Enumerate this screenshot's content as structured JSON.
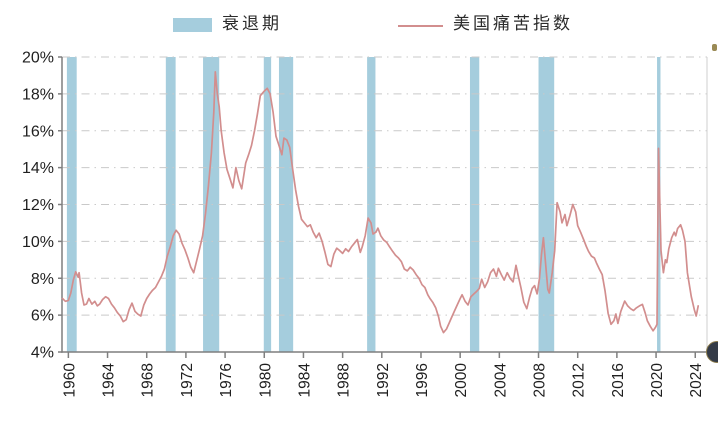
{
  "legend": {
    "recession_label": "衰退期",
    "misery_label": "美国痛苦指数"
  },
  "colors": {
    "recession_band": "#a5cddd",
    "misery_line": "#d28e8e",
    "gridline": "#c9c9c9",
    "axis": "#7f7f7f",
    "tick_label": "#1f1f1f"
  },
  "chart_data": {
    "type": "line",
    "title": "",
    "xlabel": "",
    "ylabel": "",
    "ylim": [
      4,
      20
    ],
    "xlim": [
      1959.35,
      2025.2
    ],
    "yticks": [
      4,
      6,
      8,
      10,
      12,
      14,
      16,
      18,
      20
    ],
    "ytick_labels": [
      "4%",
      "6%",
      "8%",
      "10%",
      "12%",
      "14%",
      "16%",
      "18%",
      "20%"
    ],
    "xticks": [
      1960,
      1964,
      1968,
      1972,
      1976,
      1980,
      1984,
      1988,
      1992,
      1996,
      2000,
      2004,
      2008,
      2012,
      2016,
      2020,
      2024
    ],
    "grid": "horizontal dash-dot lines at 6%-20%, x-axis labels rotated 90deg",
    "legend_position": "top",
    "recession_bands": [
      [
        1959.85,
        1960.85
      ],
      [
        1969.95,
        1970.95
      ],
      [
        1973.75,
        1975.4
      ],
      [
        1979.95,
        1980.7
      ],
      [
        1981.5,
        1982.95
      ],
      [
        1990.5,
        1991.35
      ],
      [
        2001.0,
        2001.95
      ],
      [
        2008.0,
        2009.6
      ],
      [
        2020.1,
        2020.45
      ]
    ],
    "series": [
      {
        "name": "美国痛苦指数",
        "color": "#d28e8e",
        "points": [
          [
            1959.4,
            6.9
          ],
          [
            1959.7,
            6.75
          ],
          [
            1960.0,
            6.8
          ],
          [
            1960.25,
            7.2
          ],
          [
            1960.5,
            7.9
          ],
          [
            1960.75,
            8.35
          ],
          [
            1961.0,
            8.05
          ],
          [
            1961.1,
            8.3
          ],
          [
            1961.35,
            7.2
          ],
          [
            1961.6,
            6.55
          ],
          [
            1961.85,
            6.6
          ],
          [
            1962.1,
            6.9
          ],
          [
            1962.4,
            6.6
          ],
          [
            1962.7,
            6.75
          ],
          [
            1962.95,
            6.5
          ],
          [
            1963.2,
            6.6
          ],
          [
            1963.5,
            6.85
          ],
          [
            1963.8,
            7.0
          ],
          [
            1964.1,
            6.9
          ],
          [
            1964.4,
            6.6
          ],
          [
            1964.7,
            6.4
          ],
          [
            1965.0,
            6.15
          ],
          [
            1965.3,
            5.95
          ],
          [
            1965.6,
            5.65
          ],
          [
            1965.9,
            5.75
          ],
          [
            1966.2,
            6.3
          ],
          [
            1966.5,
            6.65
          ],
          [
            1966.8,
            6.2
          ],
          [
            1967.1,
            6.05
          ],
          [
            1967.4,
            5.95
          ],
          [
            1967.7,
            6.55
          ],
          [
            1968.0,
            6.9
          ],
          [
            1968.3,
            7.15
          ],
          [
            1968.6,
            7.35
          ],
          [
            1968.9,
            7.5
          ],
          [
            1969.2,
            7.8
          ],
          [
            1969.5,
            8.1
          ],
          [
            1969.8,
            8.5
          ],
          [
            1970.1,
            9.2
          ],
          [
            1970.4,
            9.7
          ],
          [
            1970.7,
            10.3
          ],
          [
            1971.0,
            10.6
          ],
          [
            1971.3,
            10.4
          ],
          [
            1971.6,
            9.9
          ],
          [
            1971.9,
            9.55
          ],
          [
            1972.2,
            9.1
          ],
          [
            1972.5,
            8.6
          ],
          [
            1972.8,
            8.3
          ],
          [
            1973.1,
            8.95
          ],
          [
            1973.4,
            9.6
          ],
          [
            1973.7,
            10.3
          ],
          [
            1974.0,
            11.5
          ],
          [
            1974.3,
            13.0
          ],
          [
            1974.6,
            14.8
          ],
          [
            1974.85,
            17.0
          ],
          [
            1975.0,
            19.2
          ],
          [
            1975.2,
            18.0
          ],
          [
            1975.4,
            17.3
          ],
          [
            1975.6,
            16.0
          ],
          [
            1975.9,
            14.8
          ],
          [
            1976.2,
            13.9
          ],
          [
            1976.5,
            13.4
          ],
          [
            1976.8,
            12.9
          ],
          [
            1977.1,
            14.0
          ],
          [
            1977.4,
            13.3
          ],
          [
            1977.7,
            12.85
          ],
          [
            1978.1,
            14.25
          ],
          [
            1978.4,
            14.7
          ],
          [
            1978.7,
            15.2
          ],
          [
            1979.0,
            16.0
          ],
          [
            1979.3,
            16.9
          ],
          [
            1979.6,
            17.9
          ],
          [
            1980.0,
            18.15
          ],
          [
            1980.3,
            18.3
          ],
          [
            1980.6,
            18.0
          ],
          [
            1980.9,
            17.0
          ],
          [
            1981.2,
            15.7
          ],
          [
            1981.5,
            15.2
          ],
          [
            1981.8,
            14.7
          ],
          [
            1982.0,
            15.6
          ],
          [
            1982.3,
            15.5
          ],
          [
            1982.6,
            15.1
          ],
          [
            1982.9,
            13.9
          ],
          [
            1983.2,
            12.8
          ],
          [
            1983.5,
            11.9
          ],
          [
            1983.8,
            11.2
          ],
          [
            1984.1,
            11.0
          ],
          [
            1984.4,
            10.8
          ],
          [
            1984.7,
            10.9
          ],
          [
            1985.0,
            10.5
          ],
          [
            1985.3,
            10.2
          ],
          [
            1985.6,
            10.45
          ],
          [
            1985.9,
            10.0
          ],
          [
            1986.2,
            9.4
          ],
          [
            1986.5,
            8.75
          ],
          [
            1986.8,
            8.63
          ],
          [
            1987.1,
            9.3
          ],
          [
            1987.4,
            9.63
          ],
          [
            1987.7,
            9.5
          ],
          [
            1988.0,
            9.35
          ],
          [
            1988.3,
            9.6
          ],
          [
            1988.6,
            9.45
          ],
          [
            1988.9,
            9.7
          ],
          [
            1989.2,
            9.9
          ],
          [
            1989.5,
            10.1
          ],
          [
            1989.8,
            9.4
          ],
          [
            1990.0,
            9.7
          ],
          [
            1990.3,
            10.3
          ],
          [
            1990.6,
            11.26
          ],
          [
            1990.9,
            11.0
          ],
          [
            1991.1,
            10.4
          ],
          [
            1991.4,
            10.5
          ],
          [
            1991.6,
            10.72
          ],
          [
            1991.9,
            10.3
          ],
          [
            1992.2,
            10.07
          ],
          [
            1992.5,
            9.95
          ],
          [
            1992.8,
            9.7
          ],
          [
            1993.1,
            9.46
          ],
          [
            1993.4,
            9.25
          ],
          [
            1993.7,
            9.1
          ],
          [
            1994.0,
            8.9
          ],
          [
            1994.3,
            8.5
          ],
          [
            1994.6,
            8.4
          ],
          [
            1994.9,
            8.6
          ],
          [
            1995.2,
            8.45
          ],
          [
            1995.5,
            8.2
          ],
          [
            1995.8,
            8.0
          ],
          [
            1996.1,
            7.65
          ],
          [
            1996.4,
            7.5
          ],
          [
            1996.7,
            7.1
          ],
          [
            1996.9,
            6.92
          ],
          [
            1997.2,
            6.7
          ],
          [
            1997.5,
            6.4
          ],
          [
            1997.8,
            5.9
          ],
          [
            1998.0,
            5.4
          ],
          [
            1998.3,
            5.05
          ],
          [
            1998.6,
            5.25
          ],
          [
            1998.9,
            5.6
          ],
          [
            1999.1,
            5.85
          ],
          [
            1999.4,
            6.2
          ],
          [
            1999.7,
            6.55
          ],
          [
            2000.0,
            6.9
          ],
          [
            2000.2,
            7.1
          ],
          [
            2000.5,
            6.75
          ],
          [
            2000.8,
            6.55
          ],
          [
            2001.1,
            7.0
          ],
          [
            2001.4,
            7.15
          ],
          [
            2001.7,
            7.3
          ],
          [
            2001.95,
            7.45
          ],
          [
            2002.2,
            7.95
          ],
          [
            2002.5,
            7.5
          ],
          [
            2002.8,
            7.8
          ],
          [
            2003.1,
            8.3
          ],
          [
            2003.4,
            8.5
          ],
          [
            2003.7,
            8.1
          ],
          [
            2003.9,
            8.54
          ],
          [
            2004.2,
            8.2
          ],
          [
            2004.5,
            7.9
          ],
          [
            2004.8,
            8.3
          ],
          [
            2005.1,
            8.0
          ],
          [
            2005.4,
            7.8
          ],
          [
            2005.7,
            8.7
          ],
          [
            2005.9,
            8.2
          ],
          [
            2006.2,
            7.5
          ],
          [
            2006.5,
            6.7
          ],
          [
            2006.8,
            6.35
          ],
          [
            2007.1,
            7.0
          ],
          [
            2007.35,
            7.45
          ],
          [
            2007.6,
            7.6
          ],
          [
            2007.85,
            7.15
          ],
          [
            2008.1,
            8.0
          ],
          [
            2008.3,
            9.3
          ],
          [
            2008.5,
            10.2
          ],
          [
            2008.75,
            8.6
          ],
          [
            2008.95,
            7.4
          ],
          [
            2009.1,
            7.2
          ],
          [
            2009.4,
            8.3
          ],
          [
            2009.65,
            9.5
          ],
          [
            2009.9,
            12.1
          ],
          [
            2010.2,
            11.6
          ],
          [
            2010.4,
            11.0
          ],
          [
            2010.7,
            11.46
          ],
          [
            2010.9,
            10.85
          ],
          [
            2011.2,
            11.4
          ],
          [
            2011.5,
            12.0
          ],
          [
            2011.8,
            11.6
          ],
          [
            2012.0,
            10.85
          ],
          [
            2012.3,
            10.5
          ],
          [
            2012.6,
            10.1
          ],
          [
            2012.9,
            9.7
          ],
          [
            2013.1,
            9.46
          ],
          [
            2013.4,
            9.2
          ],
          [
            2013.7,
            9.1
          ],
          [
            2013.9,
            8.85
          ],
          [
            2014.2,
            8.5
          ],
          [
            2014.5,
            8.2
          ],
          [
            2014.8,
            7.3
          ],
          [
            2015.1,
            6.1
          ],
          [
            2015.4,
            5.5
          ],
          [
            2015.7,
            5.7
          ],
          [
            2015.9,
            6.06
          ],
          [
            2016.1,
            5.55
          ],
          [
            2016.4,
            6.2
          ],
          [
            2016.8,
            6.76
          ],
          [
            2017.1,
            6.5
          ],
          [
            2017.4,
            6.35
          ],
          [
            2017.7,
            6.25
          ],
          [
            2018.0,
            6.4
          ],
          [
            2018.3,
            6.5
          ],
          [
            2018.6,
            6.58
          ],
          [
            2018.9,
            6.1
          ],
          [
            2019.1,
            5.7
          ],
          [
            2019.4,
            5.4
          ],
          [
            2019.7,
            5.15
          ],
          [
            2019.95,
            5.35
          ],
          [
            2020.1,
            5.5
          ],
          [
            2020.25,
            15.05
          ],
          [
            2020.5,
            9.5
          ],
          [
            2020.75,
            8.3
          ],
          [
            2020.95,
            9.0
          ],
          [
            2021.1,
            8.85
          ],
          [
            2021.3,
            9.6
          ],
          [
            2021.6,
            10.2
          ],
          [
            2021.85,
            10.5
          ],
          [
            2022.0,
            10.3
          ],
          [
            2022.2,
            10.7
          ],
          [
            2022.5,
            10.9
          ],
          [
            2022.7,
            10.6
          ],
          [
            2022.95,
            10.0
          ],
          [
            2023.2,
            8.3
          ],
          [
            2023.6,
            7.0
          ],
          [
            2023.9,
            6.3
          ],
          [
            2024.1,
            5.95
          ],
          [
            2024.3,
            6.5
          ]
        ]
      }
    ]
  }
}
